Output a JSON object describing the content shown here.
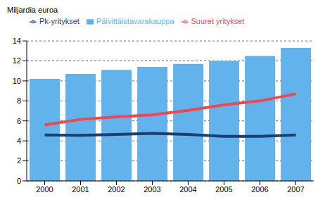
{
  "chart_data": {
    "type": "bar",
    "y_label": "Miljardia euroa",
    "categories": [
      "2000",
      "2001",
      "2002",
      "2003",
      "2004",
      "2005",
      "2006",
      "2007"
    ],
    "series": [
      {
        "name": "Päivittäistavarakauppa",
        "type": "bar",
        "color": "#62b3ec",
        "values": [
          10.2,
          10.7,
          11.1,
          11.4,
          11.7,
          12.0,
          12.5,
          13.3
        ]
      },
      {
        "name": "Pk-yritykset",
        "type": "line",
        "color": "#1b3f74",
        "values": [
          4.6,
          4.55,
          4.65,
          4.75,
          4.65,
          4.45,
          4.45,
          4.6
        ]
      },
      {
        "name": "Suuret yritykset",
        "type": "line",
        "color": "#ea4b52",
        "values": [
          5.6,
          6.15,
          6.4,
          6.6,
          7.05,
          7.6,
          8.0,
          8.7
        ]
      }
    ],
    "ylim": [
      0,
      14
    ],
    "yticks": [
      0,
      2,
      4,
      6,
      8,
      10,
      12,
      14
    ],
    "grid": true,
    "legend": "top-left"
  }
}
